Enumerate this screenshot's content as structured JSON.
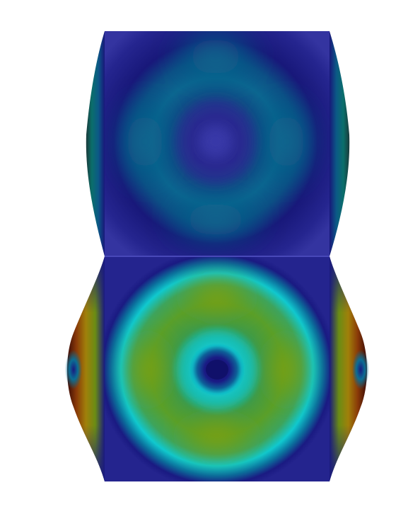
{
  "scene": {
    "background_color": "#ffffff",
    "colormap": [
      "#2a2a7e",
      "#17156e",
      "#0d5a8c",
      "#1ad3d3",
      "#5fa332",
      "#8a9a08",
      "#a07008",
      "#6e1a0a",
      "#3a0a06"
    ],
    "upper_cell": {
      "dominant_colors": [
        "#3434a0",
        "#18187a",
        "#0b5a86",
        "#0d6d93"
      ]
    },
    "lower_cell": {
      "dominant_colors": [
        "#20208a",
        "#10c8cf",
        "#4f9d2b",
        "#8a9a08",
        "#14147a"
      ]
    },
    "side_flanges": {
      "dominant_colors": [
        "#0b5a86",
        "#0b7c6e",
        "#a35a08",
        "#6e1a0a",
        "#17156e"
      ]
    }
  }
}
